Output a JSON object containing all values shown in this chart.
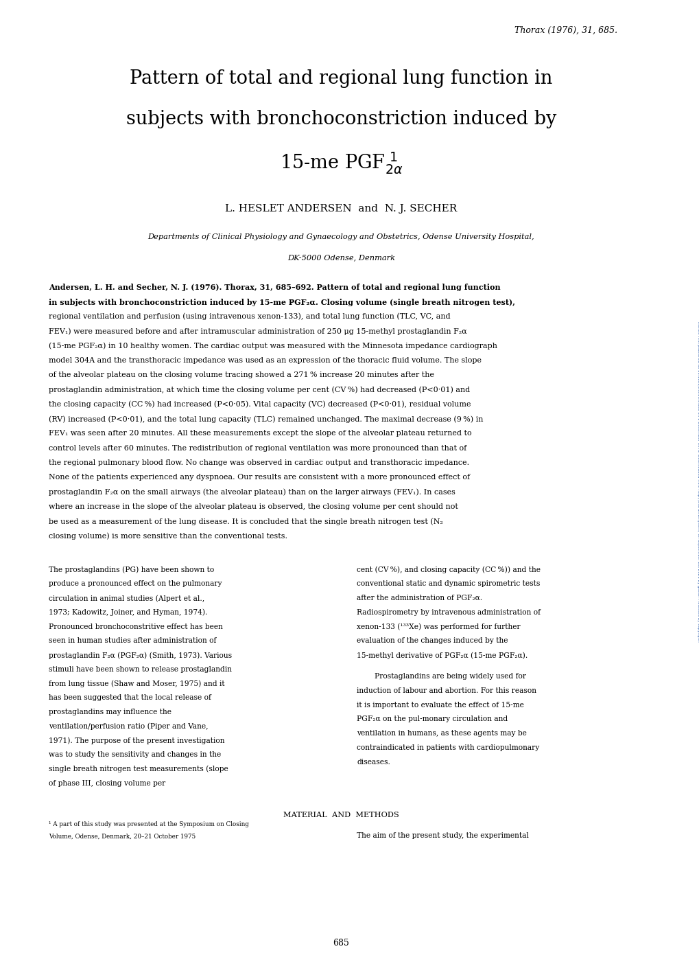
{
  "background_color": "#ffffff",
  "page_width": 10.2,
  "page_height": 14.01,
  "journal_ref": "Thorax (1976), 31, 685.",
  "side_text": "Thorax: first published as 10.1136/thx.31.6.685 on 1 December 1976. Downloaded from http://thorax.bmj.com/ on September 28, 2021 by guest. Protected by copyright.",
  "title_line1": "Pattern of total and regional lung function in",
  "title_line2": "subjects with bronchoconstriction induced by",
  "authors": "L. HESLET ANDERSEN  and  N. J. SECHER",
  "affiliation1": "Departments of Clinical Physiology and Gynaecology and Obstetrics, Odense University Hospital,",
  "affiliation2": "DK-5000 Odense, Denmark",
  "abs_bold": "Andersen, L. H. and Secher, N. J. (1976). Thorax, 31, 685–692. Pattern of total and regional lung function in subjects with bronchoconstriction induced by 15-me PGF₂α.",
  "abs_regular": " Closing volume (single breath nitrogen test), regional ventilation and perfusion (using intravenous xenon-133), and total lung function (TLC, VC, and FEV₁) were measured before and after intramuscular administration of 250 μg 15-methyl prostaglandin F₂α (15-me PGF₂α) in 10 healthy women. The cardiac output was measured with the Minnesota impedance cardiograph model 304A and the transthoracic impedance was used as an expression of the thoracic fluid volume. The slope of the alveolar plateau on the closing volume tracing showed a 271 % increase 20 minutes after the prostaglandin administration, at which time the closing volume per cent (CV %) had decreased (P<0·01) and the closing capacity (CC %) had increased (P<0·05). Vital capacity (VC) decreased (P<0·01), residual volume (RV) increased (P<0·01), and the total lung capacity (TLC) remained unchanged. The maximal decrease (9 %) in FEV₁ was seen after 20 minutes. All these measurements except the slope of the alveolar plateau returned to control levels after 60 minutes. The redistribution of regional ventilation was more pronounced than that of the regional pulmonary blood flow. No change was observed in cardiac output and transthoracic impedance. None of the patients experienced any dyspnoea. Our results are consistent with a more pronounced effect of prostaglandin F₂α on the small airways (the alveolar plateau) than on the larger airways (FEV₁). In cases where an increase in the slope of the alveolar plateau is observed, the closing volume per cent should not be used as a measurement of the lung disease. It is concluded that the single breath nitrogen test (N₂ closing volume) is more sensitive than the conventional tests.",
  "col1_text": "The prostaglandins (PG) have been shown to produce a pronounced effect on the pulmonary circulation in animal studies (Alpert et al., 1973; Kadowitz, Joiner, and Hyman, 1974). Pronounced bronchoconstritive effect has been seen in human studies after administration of prostaglandin F₂α (PGF₂α) (Smith, 1973). Various stimuli have been shown to release prostaglandin from lung tissue (Shaw and Moser, 1975) and it has been suggested that the local release of prostaglandins may influence the ventilation/perfusion ratio (Piper and Vane, 1971). The purpose of the present investigation was to study the sensitivity and changes in the single breath nitrogen test measurements (slope of phase III, closing volume per",
  "col2_text": "cent (CV %), and closing capacity (CC %)) and the conventional static and dynamic spirometric tests after the administration of PGF₂α. Radiospirometry by intravenous administration of xenon-133 (¹³³Xe) was performed for further evaluation of the changes induced by the 15-methyl derivative of PGF₂α (15-me PGF₂α). Prostaglandins are being widely used for induction of labour and abortion. For this reason it is important to evaluate the effect of 15-me PGF₂α on the pulmonary circulation and ventilation in humans, as these agents may be contraindicated in patients with cardiopulmonary diseases.",
  "material_methods": "MATERIAL  AND  METHODS",
  "material_text": "The aim of the present study, the experimental",
  "footnote_line1": "¹ A part of this study was presented at the Symposium on Closing",
  "footnote_line2": "Volume, Odense, Denmark, 20–21 October 1975",
  "page_number": "685"
}
